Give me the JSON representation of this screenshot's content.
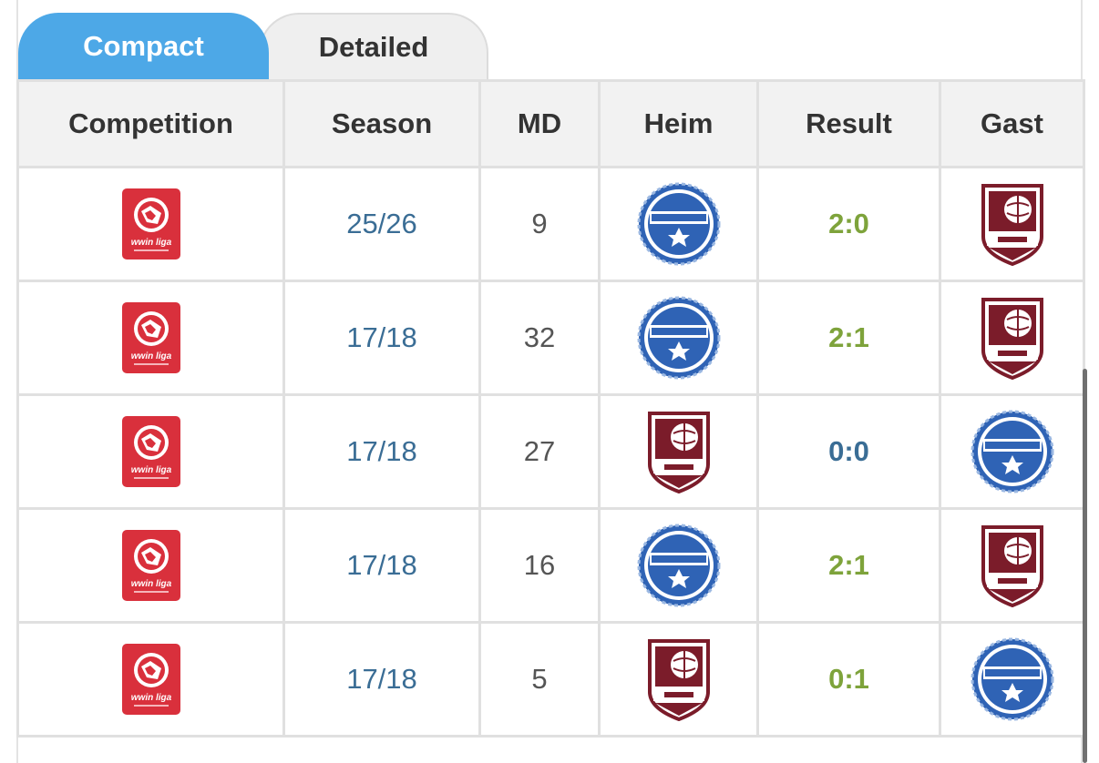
{
  "tabs": [
    {
      "label": "Compact",
      "active": true
    },
    {
      "label": "Detailed",
      "active": false
    }
  ],
  "table": {
    "headers": [
      "Competition",
      "Season",
      "MD",
      "Heim",
      "Result",
      "Gast"
    ],
    "rows": [
      {
        "competition": "wwin liga",
        "season": "25/26",
        "md": "9",
        "home": "FK Zeljeznicar",
        "result": "2:0",
        "away": "FK Sarajevo"
      },
      {
        "competition": "wwin liga",
        "season": "17/18",
        "md": "32",
        "home": "FK Zeljeznicar",
        "result": "2:1",
        "away": "FK Sarajevo"
      },
      {
        "competition": "wwin liga",
        "season": "17/18",
        "md": "27",
        "home": "FK Sarajevo",
        "result": "0:0",
        "away": "FK Zeljeznicar"
      },
      {
        "competition": "wwin liga",
        "season": "17/18",
        "md": "16",
        "home": "FK Zeljeznicar",
        "result": "2:1",
        "away": "FK Sarajevo"
      },
      {
        "competition": "wwin liga",
        "season": "17/18",
        "md": "5",
        "home": "FK Sarajevo",
        "result": "0:1",
        "away": "FK Zeljeznicar"
      }
    ]
  },
  "colors": {
    "tab_active": "#4da8e7",
    "result_win": "#7ea33b",
    "result_draw": "#3a6d95",
    "season_link": "#3a6d95"
  },
  "icons": {
    "competition": "league-logo-icon",
    "zeljeznicar": "club-crest-blue-icon",
    "sarajevo": "club-crest-maroon-icon"
  }
}
